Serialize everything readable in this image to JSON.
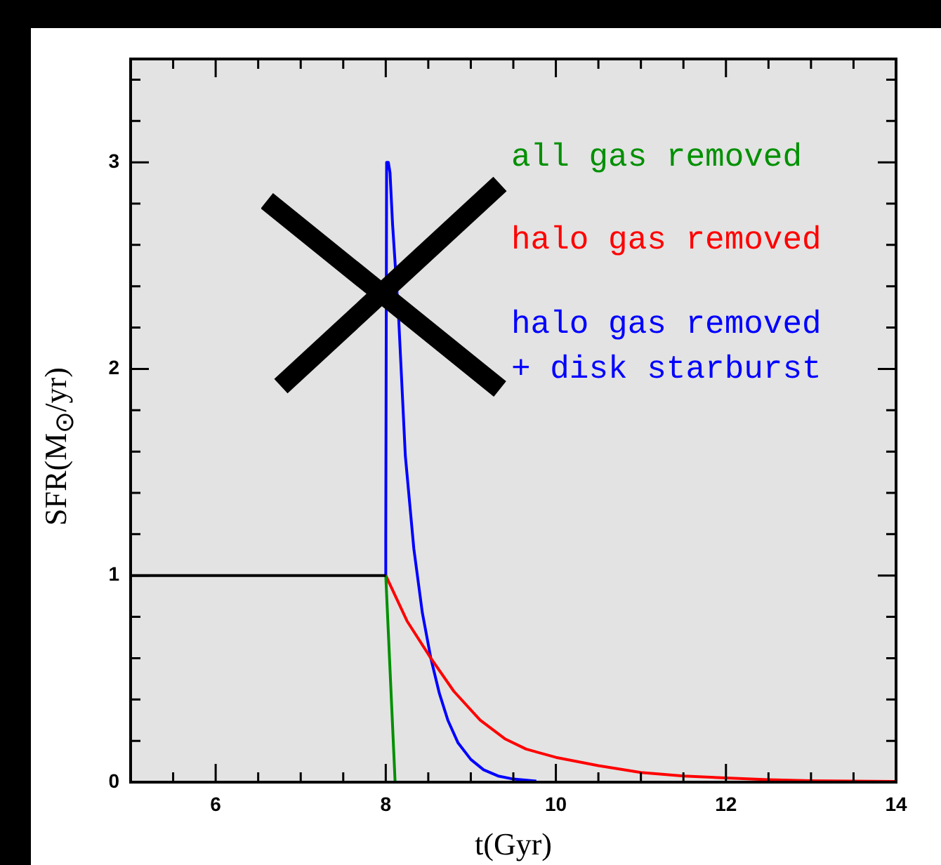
{
  "chart_data": {
    "type": "line",
    "xlabel": "t(Gyr)",
    "ylabel": "SFR(M$_{⊙}$/yr)",
    "xlim": [
      5,
      14
    ],
    "xticks": [
      {
        "value": 5.5,
        "label": null
      },
      6,
      {
        "value": 6.5,
        "label": null
      },
      {
        "value": 7,
        "label": null
      },
      {
        "value": 7.5,
        "label": null
      },
      8,
      {
        "value": 8.5,
        "label": null
      },
      {
        "value": 9,
        "label": null
      },
      {
        "value": 9.5,
        "label": null
      },
      10,
      {
        "value": 10.5,
        "label": null
      },
      {
        "value": 11,
        "label": null
      },
      {
        "value": 11.5,
        "label": null
      },
      12,
      {
        "value": 12.5,
        "label": null
      },
      {
        "value": 13,
        "label": null
      },
      {
        "value": 13.5,
        "label": null
      },
      14
    ],
    "ylim": [
      0,
      3.5
    ],
    "yticks": [
      0,
      {
        "value": 0.2,
        "label": null
      },
      {
        "value": 0.4,
        "label": null
      },
      {
        "value": 0.6,
        "label": null
      },
      {
        "value": 0.8,
        "label": null
      },
      1,
      {
        "value": 1.2,
        "label": null
      },
      {
        "value": 1.4,
        "label": null
      },
      {
        "value": 1.6,
        "label": null
      },
      {
        "value": 1.8,
        "label": null
      },
      2,
      {
        "value": 2.2,
        "label": null
      },
      {
        "value": 2.4,
        "label": null
      },
      {
        "value": 2.6,
        "label": null
      },
      {
        "value": 2.8,
        "label": null
      },
      3,
      {
        "value": 3.2,
        "label": null
      },
      {
        "value": 3.4,
        "label": null
      }
    ],
    "grid": false,
    "series": [
      {
        "color": "#000000",
        "x": [
          5,
          8
        ],
        "values": [
          1,
          1
        ]
      },
      {
        "name": "all gas removed",
        "color": "#009000",
        "x": [
          8,
          8.11
        ],
        "values": [
          1,
          0
        ]
      },
      {
        "name": "halo gas removed",
        "color": "#ff0000",
        "x": [
          8,
          8.25,
          8.53,
          8.8,
          9.11,
          9.4,
          9.65,
          10,
          10.5,
          11,
          11.5,
          12,
          12.5,
          13,
          14
        ],
        "values": [
          1,
          0.78,
          0.6,
          0.44,
          0.3,
          0.21,
          0.16,
          0.12,
          0.08,
          0.047,
          0.03,
          0.02,
          0.012,
          0.007,
          0.003
        ]
      },
      {
        "name": "halo gas removed\n+ disk starburst",
        "color": "#0000ff",
        "x": [
          8,
          8,
          8.01,
          8.03,
          8.05,
          8.08,
          8.15,
          8.23,
          8.33,
          8.43,
          8.53,
          8.63,
          8.73,
          8.85,
          9,
          9.15,
          9.32,
          9.5,
          9.77
        ],
        "values": [
          1,
          1.16,
          3,
          3,
          2.95,
          2.7,
          2.26,
          1.58,
          1.13,
          0.82,
          0.6,
          0.43,
          0.3,
          0.19,
          0.11,
          0.06,
          0.03,
          0.015,
          0.005
        ]
      }
    ]
  }
}
